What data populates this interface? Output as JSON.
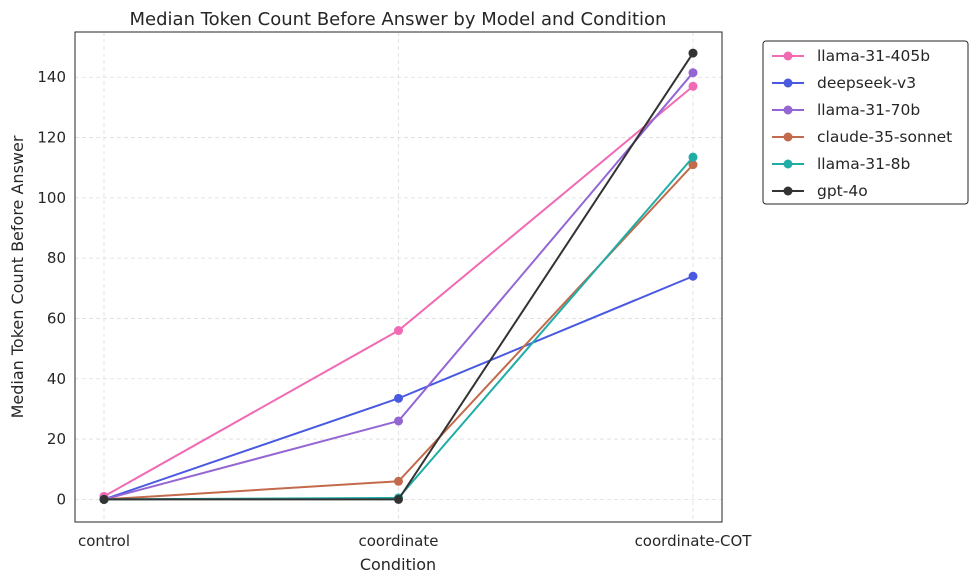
{
  "chart_data": {
    "type": "line",
    "title": "Median Token Count Before Answer by Model and Condition",
    "xlabel": "Condition",
    "ylabel": "Median Token Count Before Answer",
    "categories": [
      "control",
      "coordinate",
      "coordinate-COT"
    ],
    "ylim": [
      -7.5,
      155
    ],
    "yticks": [
      0,
      20,
      40,
      60,
      80,
      100,
      120,
      140
    ],
    "grid": true,
    "legend_position": "outside-top-right",
    "series": [
      {
        "name": "llama-31-405b",
        "color": "#f06bb4",
        "values": [
          1,
          56,
          137
        ]
      },
      {
        "name": "deepseek-v3",
        "color": "#4a5ae0",
        "values": [
          0,
          33.5,
          74
        ]
      },
      {
        "name": "llama-31-70b",
        "color": "#9466d4",
        "values": [
          0,
          26,
          141.5
        ]
      },
      {
        "name": "claude-35-sonnet",
        "color": "#c46a4c",
        "values": [
          0,
          6,
          111
        ]
      },
      {
        "name": "llama-31-8b",
        "color": "#1fada6",
        "values": [
          0,
          0.5,
          113.5
        ]
      },
      {
        "name": "gpt-4o",
        "color": "#333333",
        "values": [
          0,
          0,
          148
        ]
      }
    ]
  }
}
